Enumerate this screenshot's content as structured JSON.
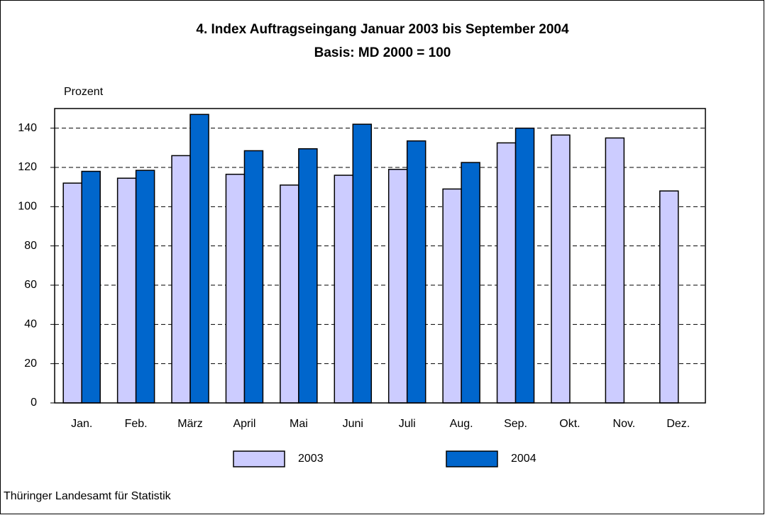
{
  "chart_data": {
    "type": "bar",
    "title": "4. Index Auftragseingang Januar 2003 bis September 2004",
    "subtitle": "Basis: MD 2000 = 100",
    "y_label": "Prozent",
    "source": "Thüringer Landesamt für Statistik",
    "categories": [
      "Jan.",
      "Feb.",
      "März",
      "April",
      "Mai",
      "Juni",
      "Juli",
      "Aug.",
      "Sep.",
      "Okt.",
      "Nov.",
      "Dez."
    ],
    "series": [
      {
        "name": "2003",
        "color": "#ccccff",
        "values": [
          112,
          114.5,
          126,
          116.5,
          111,
          116,
          119,
          109,
          132.5,
          136.5,
          135,
          108
        ]
      },
      {
        "name": "2004",
        "color": "#0066cc",
        "values": [
          118,
          118.5,
          147,
          128.5,
          129.5,
          142,
          133.5,
          122.5,
          140,
          null,
          null,
          null
        ]
      }
    ],
    "ylim": [
      0,
      150
    ],
    "yticks": [
      0,
      20,
      40,
      60,
      80,
      100,
      120,
      140
    ],
    "grid": true
  }
}
